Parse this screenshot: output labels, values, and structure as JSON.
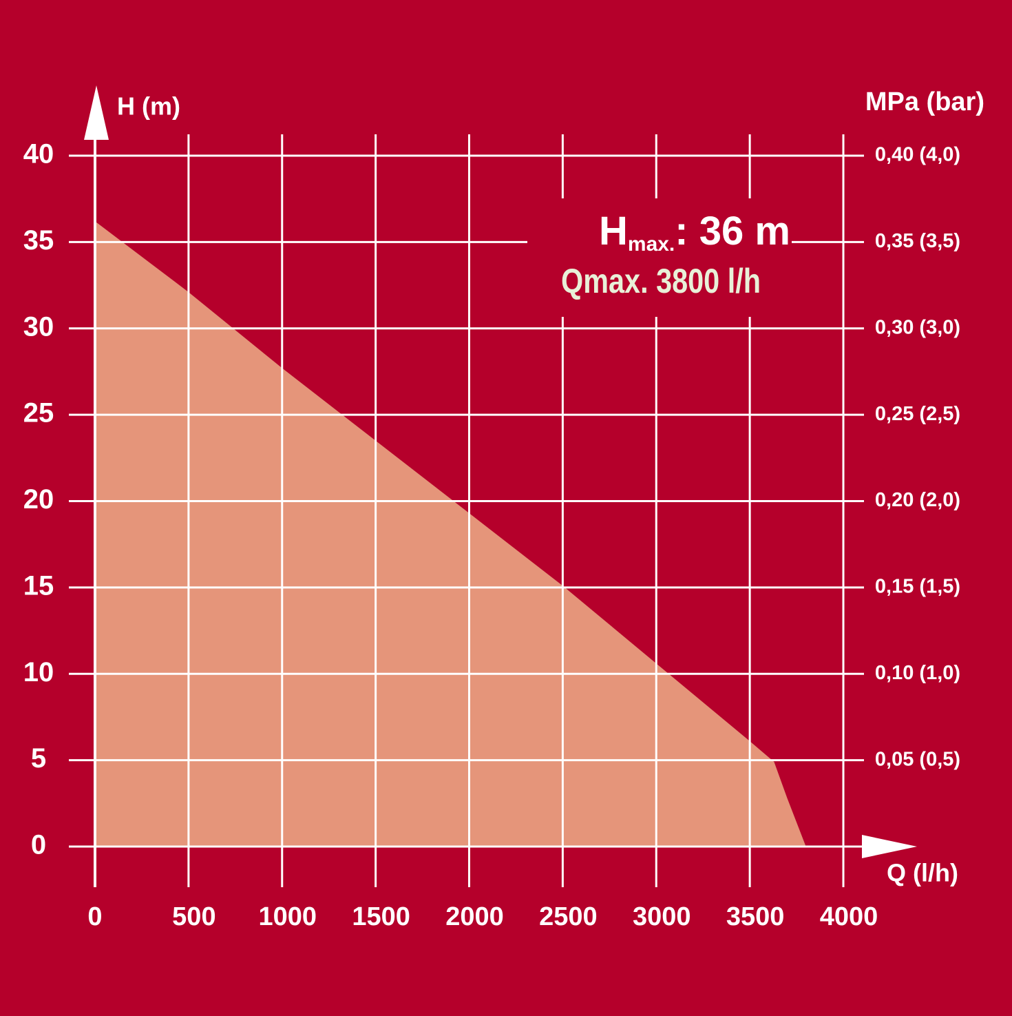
{
  "chart_data": {
    "type": "area",
    "y_label": "H (m)",
    "y2_label": "MPa (bar)",
    "x_label": "Q (l/h)",
    "x": [
      0,
      500,
      1000,
      1500,
      2000,
      2500,
      3000,
      3500,
      3630,
      3700,
      3750,
      3800
    ],
    "series": [
      {
        "name": "H",
        "color": "#e5957a",
        "values": [
          36.2,
          32.1,
          27.7,
          23.5,
          19.3,
          15.1,
          10.6,
          6.1,
          4.9,
          2.8,
          1.4,
          0
        ]
      }
    ],
    "xlim": [
      0,
      4000
    ],
    "xticks": [
      0,
      500,
      1000,
      1500,
      2000,
      2500,
      3000,
      3500,
      4000
    ],
    "ylim": [
      0,
      40
    ],
    "yticks": [
      0,
      5,
      10,
      15,
      20,
      25,
      30,
      35,
      40
    ],
    "y2lim": [
      0,
      0.4
    ],
    "y2ticks": [
      {
        "value": 0.05,
        "label": "0,05 (0,5)"
      },
      {
        "value": 0.1,
        "label": "0,10 (1,0)"
      },
      {
        "value": 0.15,
        "label": "0,15 (1,5)"
      },
      {
        "value": 0.2,
        "label": "0,20 (2,0)"
      },
      {
        "value": 0.25,
        "label": "0,25 (2,5)"
      },
      {
        "value": 0.3,
        "label": "0,30 (3,0)"
      },
      {
        "value": 0.35,
        "label": "0,35 (3,5)"
      },
      {
        "value": 0.4,
        "label": "0,40 (4,0)"
      }
    ],
    "grid": true,
    "annotations": [
      {
        "text": "H",
        "subscript": "max.",
        "suffix": ": 36 m"
      },
      {
        "text": "Qmax. 3800 l/h"
      }
    ]
  }
}
